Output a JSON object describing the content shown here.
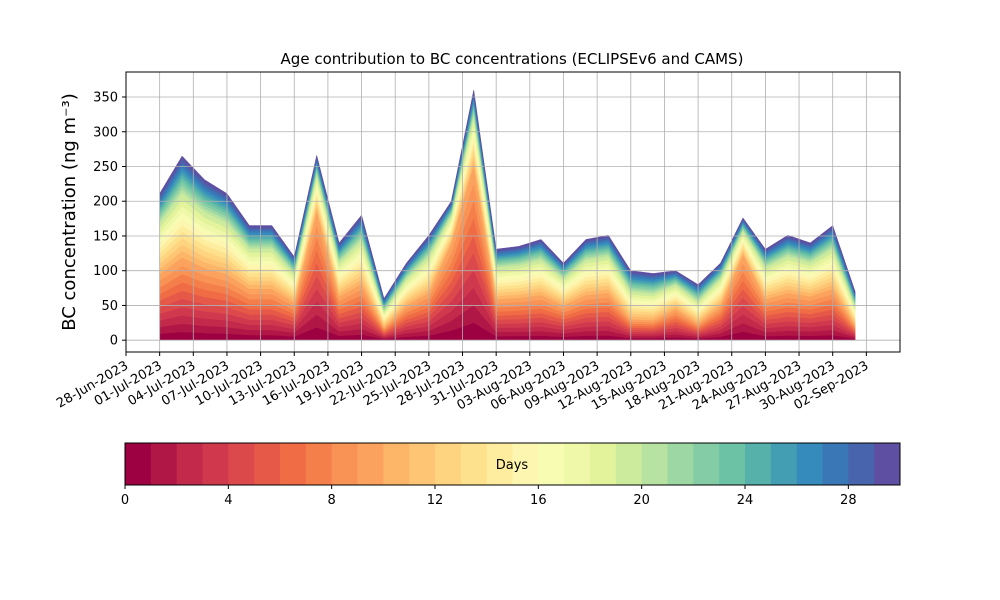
{
  "chart_data": {
    "type": "stacked_area",
    "title": "Age contribution to BC concentrations (ECLIPSEv6 and CAMS)",
    "ylabel": "BC concentration (ng m⁻³)",
    "x": [
      "2023-07-01",
      "2023-07-03",
      "2023-07-05",
      "2023-07-07",
      "2023-07-09",
      "2023-07-11",
      "2023-07-13",
      "2023-07-15",
      "2023-07-17",
      "2023-07-19",
      "2023-07-21",
      "2023-07-23",
      "2023-07-25",
      "2023-07-27",
      "2023-07-29",
      "2023-07-31",
      "2023-08-02",
      "2023-08-04",
      "2023-08-06",
      "2023-08-08",
      "2023-08-10",
      "2023-08-12",
      "2023-08-14",
      "2023-08-16",
      "2023-08-18",
      "2023-08-20",
      "2023-08-22",
      "2023-08-24",
      "2023-08-26",
      "2023-08-28",
      "2023-08-30",
      "2023-09-01"
    ],
    "series": [
      {
        "color": "#9e0142",
        "values": [
          9.5,
          11.9,
          10.4,
          9.5,
          7.4,
          7.4,
          5.4,
          18.6,
          6.3,
          8.1,
          1.8,
          5,
          6.8,
          14,
          25.2,
          5.9,
          6.1,
          6.5,
          5,
          6.5,
          6.8,
          3,
          2.9,
          4.5,
          2.4,
          5,
          12.3,
          5.9,
          6.8,
          6.3,
          7.4,
          2.1
        ]
      },
      {
        "color": "#b01646",
        "values": [
          9.5,
          11.9,
          10.4,
          9.5,
          7.4,
          7.4,
          5.4,
          18.6,
          6.3,
          8.1,
          1.8,
          5,
          6.8,
          14,
          25.2,
          5.9,
          6.1,
          6.5,
          5,
          6.5,
          6.8,
          3,
          2.9,
          4.5,
          2.4,
          5,
          12.3,
          5.9,
          6.8,
          6.3,
          7.4,
          2.1
        ]
      },
      {
        "color": "#c2294a",
        "values": [
          9.5,
          11.9,
          10.4,
          9.5,
          7.4,
          7.4,
          5.4,
          18.6,
          6.3,
          8.1,
          1.8,
          5,
          6.8,
          14,
          25.2,
          5.9,
          6.1,
          6.5,
          5,
          6.5,
          6.8,
          3,
          2.9,
          4.5,
          2.4,
          5,
          12.3,
          5.9,
          6.8,
          6.3,
          7.4,
          2.1
        ]
      },
      {
        "color": "#d0384e",
        "values": [
          9.5,
          11.9,
          10.4,
          9.5,
          7.4,
          7.4,
          5.4,
          18.6,
          6.3,
          8.1,
          1.8,
          5,
          6.8,
          14,
          25.2,
          5.9,
          6.1,
          6.5,
          5,
          6.5,
          6.8,
          3,
          2.9,
          4.5,
          2.4,
          5,
          12.3,
          5.9,
          6.8,
          6.3,
          7.4,
          2.1
        ]
      },
      {
        "color": "#dc494c",
        "values": [
          9.5,
          11.9,
          10.4,
          9.5,
          7.4,
          7.4,
          5.4,
          18.6,
          6.3,
          8.1,
          1.8,
          5,
          6.8,
          14,
          25.2,
          5.9,
          6.1,
          6.5,
          5,
          6.5,
          6.8,
          3,
          2.9,
          4.5,
          2.4,
          5,
          12.3,
          5.9,
          6.8,
          6.3,
          7.4,
          2.1
        ]
      },
      {
        "color": "#e65948",
        "values": [
          9.5,
          11.9,
          10.4,
          9.5,
          7.4,
          7.4,
          5.4,
          18.6,
          6.3,
          8.1,
          1.8,
          5,
          6.8,
          14,
          25.2,
          5.9,
          6.1,
          6.5,
          5,
          6.5,
          6.8,
          3,
          2.9,
          4.5,
          2.4,
          5,
          12.3,
          5.9,
          6.8,
          6.3,
          7.4,
          2.1
        ]
      },
      {
        "color": "#f06c45",
        "values": [
          9.5,
          11.9,
          10.4,
          9.5,
          7.4,
          7.4,
          5.4,
          18.6,
          6.3,
          8.1,
          1.8,
          5,
          6.8,
          14,
          25.2,
          5.9,
          6.1,
          6.5,
          5,
          6.5,
          6.8,
          3,
          2.9,
          4.5,
          2.4,
          5,
          12.3,
          5.9,
          6.8,
          6.3,
          7.4,
          2.1
        ]
      },
      {
        "color": "#f57f4b",
        "values": [
          9.5,
          11.9,
          10.4,
          9.5,
          7.4,
          7.4,
          5.4,
          18.6,
          6.3,
          8.1,
          1.8,
          5,
          6.8,
          14,
          25.2,
          5.9,
          6.1,
          6.5,
          5,
          6.5,
          6.8,
          3,
          2.9,
          4.5,
          2.4,
          5,
          12.3,
          5.9,
          6.8,
          6.3,
          7.4,
          2.1
        ]
      },
      {
        "color": "#f99355",
        "values": [
          9.5,
          11.9,
          10.4,
          9.5,
          7.4,
          7.4,
          5.4,
          18.6,
          6.3,
          8.1,
          1.8,
          5,
          6.8,
          14,
          25.2,
          5.9,
          6.1,
          6.5,
          5,
          6.5,
          6.8,
          3,
          2.9,
          4.5,
          2.4,
          5,
          12.3,
          5.9,
          6.8,
          6.3,
          7.4,
          2.1
        ]
      },
      {
        "color": "#fba35e",
        "values": [
          9.5,
          11.9,
          10.4,
          9.5,
          7.4,
          7.4,
          5.4,
          18.6,
          6.3,
          8.1,
          1.8,
          5,
          6.8,
          14,
          25.2,
          5.9,
          6.1,
          6.5,
          5,
          6.5,
          6.8,
          3,
          2.9,
          4.5,
          2.4,
          5,
          12.3,
          5.9,
          6.8,
          6.3,
          7.4,
          2.1
        ]
      },
      {
        "color": "#fdb567",
        "values": [
          7.4,
          9.3,
          8.1,
          7.4,
          5.8,
          5.8,
          4.2,
          5.3,
          4.9,
          6.3,
          2.4,
          3.9,
          5.3,
          4,
          7.2,
          4.6,
          4.7,
          5.1,
          3.9,
          5.1,
          5.3,
          4,
          3.8,
          3.5,
          3.2,
          3.9,
          3.5,
          4.6,
          5.3,
          4.9,
          5.8,
          2.8
        ]
      },
      {
        "color": "#fdc574",
        "values": [
          7.4,
          9.3,
          8.1,
          7.4,
          5.8,
          5.8,
          4.2,
          5.3,
          4.9,
          6.3,
          2.4,
          3.9,
          5.3,
          4,
          7.2,
          4.6,
          4.7,
          5.1,
          3.9,
          5.1,
          5.3,
          4,
          3.8,
          3.5,
          3.2,
          3.9,
          3.5,
          4.6,
          5.3,
          4.9,
          5.8,
          2.8
        ]
      },
      {
        "color": "#fed481",
        "values": [
          7.4,
          9.3,
          8.1,
          7.4,
          5.8,
          5.8,
          4.2,
          5.3,
          4.9,
          6.3,
          2.4,
          3.9,
          5.3,
          4,
          7.2,
          4.6,
          4.7,
          5.1,
          3.9,
          5.1,
          5.3,
          4,
          3.8,
          3.5,
          3.2,
          3.9,
          3.5,
          4.6,
          5.3,
          4.9,
          5.8,
          2.8
        ]
      },
      {
        "color": "#fee18d",
        "values": [
          7.4,
          9.3,
          8.1,
          7.4,
          5.8,
          5.8,
          4.2,
          5.3,
          4.9,
          6.3,
          2.4,
          3.9,
          5.3,
          4,
          7.2,
          4.6,
          4.7,
          5.1,
          3.9,
          5.1,
          5.3,
          4,
          3.8,
          3.5,
          3.2,
          3.9,
          3.5,
          4.6,
          5.3,
          4.9,
          5.8,
          2.8
        ]
      },
      {
        "color": "#feed9f",
        "values": [
          7.4,
          9.3,
          8.1,
          7.4,
          5.8,
          5.8,
          4.2,
          5.3,
          4.9,
          6.3,
          2.4,
          3.9,
          5.3,
          4,
          7.2,
          4.6,
          4.7,
          5.1,
          3.9,
          5.1,
          5.3,
          4,
          3.8,
          3.5,
          3.2,
          3.9,
          3.5,
          4.6,
          5.3,
          4.9,
          5.8,
          2.8
        ]
      },
      {
        "color": "#fdf6b0",
        "values": [
          7.4,
          9.3,
          8.1,
          7.4,
          5.8,
          5.8,
          4.2,
          5.3,
          4.9,
          6.3,
          2.4,
          3.9,
          5.3,
          4,
          7.2,
          4.6,
          4.7,
          5.1,
          3.9,
          5.1,
          5.3,
          4,
          3.8,
          3.5,
          3.2,
          3.9,
          3.5,
          4.6,
          5.3,
          4.9,
          5.8,
          2.8
        ]
      },
      {
        "color": "#f8fbb2",
        "values": [
          7.4,
          9.3,
          8.1,
          7.4,
          5.8,
          5.8,
          4.2,
          5.3,
          4.9,
          6.3,
          2.4,
          3.9,
          5.3,
          4,
          7.2,
          4.6,
          4.7,
          5.1,
          3.9,
          5.1,
          5.3,
          4,
          3.8,
          3.5,
          3.2,
          3.9,
          3.5,
          4.6,
          5.3,
          4.9,
          5.8,
          2.8
        ]
      },
      {
        "color": "#eef8a8",
        "values": [
          7.4,
          9.3,
          8.1,
          7.4,
          5.8,
          5.8,
          4.2,
          5.3,
          4.9,
          6.3,
          2.4,
          3.9,
          5.3,
          4,
          7.2,
          4.6,
          4.7,
          5.1,
          3.9,
          5.1,
          5.3,
          4,
          3.8,
          3.5,
          3.2,
          3.9,
          3.5,
          4.6,
          5.3,
          4.9,
          5.8,
          2.8
        ]
      },
      {
        "color": "#e2f39b",
        "values": [
          7.4,
          9.3,
          8.1,
          7.4,
          5.8,
          5.8,
          4.2,
          5.3,
          4.9,
          6.3,
          2.4,
          3.9,
          5.3,
          4,
          7.2,
          4.6,
          4.7,
          5.1,
          3.9,
          5.1,
          5.3,
          4,
          3.8,
          3.5,
          3.2,
          3.9,
          3.5,
          4.6,
          5.3,
          4.9,
          5.8,
          2.8
        ]
      },
      {
        "color": "#cdeb9d",
        "values": [
          7.4,
          9.3,
          8.1,
          7.4,
          5.8,
          5.8,
          4.2,
          5.3,
          4.9,
          6.3,
          2.4,
          3.9,
          5.3,
          4,
          7.2,
          4.6,
          4.7,
          5.1,
          3.9,
          5.1,
          5.3,
          4,
          3.8,
          3.5,
          3.2,
          3.9,
          3.5,
          4.6,
          5.3,
          4.9,
          5.8,
          2.8
        ]
      },
      {
        "color": "#b7e2a1",
        "values": [
          4.2,
          5.3,
          4.6,
          4.2,
          3.3,
          3.3,
          2.4,
          2.7,
          2.8,
          3.6,
          1.8,
          2.2,
          3,
          2,
          3.6,
          2.6,
          2.7,
          2.9,
          2.2,
          2.9,
          3,
          3,
          2.9,
          2,
          2.4,
          2.2,
          1.8,
          2.6,
          3,
          2.8,
          3.3,
          2.1
        ]
      },
      {
        "color": "#9dd7a4",
        "values": [
          4.2,
          5.3,
          4.6,
          4.2,
          3.3,
          3.3,
          2.4,
          2.7,
          2.8,
          3.6,
          1.8,
          2.2,
          3,
          2,
          3.6,
          2.6,
          2.7,
          2.9,
          2.2,
          2.9,
          3,
          3,
          2.9,
          2,
          2.4,
          2.2,
          1.8,
          2.6,
          3,
          2.8,
          3.3,
          2.1
        ]
      },
      {
        "color": "#83cca5",
        "values": [
          4.2,
          5.3,
          4.6,
          4.2,
          3.3,
          3.3,
          2.4,
          2.7,
          2.8,
          3.6,
          1.8,
          2.2,
          3,
          2,
          3.6,
          2.6,
          2.7,
          2.9,
          2.2,
          2.9,
          3,
          3,
          2.9,
          2,
          2.4,
          2.2,
          1.8,
          2.6,
          3,
          2.8,
          3.3,
          2.1
        ]
      },
      {
        "color": "#6bc2a5",
        "values": [
          4.2,
          5.3,
          4.6,
          4.2,
          3.3,
          3.3,
          2.4,
          2.7,
          2.8,
          3.6,
          1.8,
          2.2,
          3,
          2,
          3.6,
          2.6,
          2.7,
          2.9,
          2.2,
          2.9,
          3,
          3,
          2.9,
          2,
          2.4,
          2.2,
          1.8,
          2.6,
          3,
          2.8,
          3.3,
          2.1
        ]
      },
      {
        "color": "#56b1aa",
        "values": [
          4.2,
          5.3,
          4.6,
          4.2,
          3.3,
          3.3,
          2.4,
          2.7,
          2.8,
          3.6,
          1.8,
          2.2,
          3,
          2,
          3.6,
          2.6,
          2.7,
          2.9,
          2.2,
          2.9,
          3,
          3,
          2.9,
          2,
          2.4,
          2.2,
          1.8,
          2.6,
          3,
          2.8,
          3.3,
          2.1
        ]
      },
      {
        "color": "#449eb3",
        "values": [
          4.2,
          5.3,
          4.6,
          4.2,
          3.3,
          3.3,
          2.4,
          2.7,
          2.8,
          3.6,
          1.8,
          2.2,
          3,
          2,
          3.6,
          2.6,
          2.7,
          2.9,
          2.2,
          2.9,
          3,
          3,
          2.9,
          2,
          2.4,
          2.2,
          1.8,
          2.6,
          3,
          2.8,
          3.3,
          2.1
        ]
      },
      {
        "color": "#358bbc",
        "values": [
          4.2,
          5.3,
          4.6,
          4.2,
          3.3,
          3.3,
          2.4,
          2.7,
          2.8,
          3.6,
          1.8,
          2.2,
          3,
          2,
          3.6,
          2.6,
          2.7,
          2.9,
          2.2,
          2.9,
          3,
          3,
          2.9,
          2,
          2.4,
          2.2,
          1.8,
          2.6,
          3,
          2.8,
          3.3,
          2.1
        ]
      },
      {
        "color": "#3a77b6",
        "values": [
          4.2,
          5.3,
          4.6,
          4.2,
          3.3,
          3.3,
          2.4,
          2.7,
          2.8,
          3.6,
          1.8,
          2.2,
          3,
          2,
          3.6,
          2.6,
          2.7,
          2.9,
          2.2,
          2.9,
          3,
          3,
          2.9,
          2,
          2.4,
          2.2,
          1.8,
          2.6,
          3,
          2.8,
          3.3,
          2.1
        ]
      },
      {
        "color": "#4864ac",
        "values": [
          4.2,
          5.3,
          4.6,
          4.2,
          3.3,
          3.3,
          2.4,
          2.7,
          2.8,
          3.6,
          1.8,
          2.2,
          3,
          2,
          3.6,
          2.6,
          2.7,
          2.9,
          2.2,
          2.9,
          3,
          3,
          2.9,
          2,
          2.4,
          2.2,
          1.8,
          2.6,
          3,
          2.8,
          3.3,
          2.1
        ]
      },
      {
        "color": "#5e4fa2",
        "values": [
          4.2,
          5.3,
          4.6,
          4.2,
          3.3,
          3.3,
          2.4,
          2.7,
          2.8,
          3.6,
          1.8,
          2.2,
          3,
          2,
          3.6,
          2.6,
          2.7,
          2.9,
          2.2,
          2.9,
          3,
          3,
          2.9,
          2,
          2.4,
          2.2,
          1.8,
          2.6,
          3,
          2.8,
          3.3,
          2.1
        ]
      }
    ],
    "xlim": [
      "2023-06-28",
      "2023-09-05"
    ],
    "xticks": [
      {
        "value": "2023-06-28",
        "label": "28-Jun-2023"
      },
      {
        "value": "2023-07-01",
        "label": "01-Jul-2023"
      },
      {
        "value": "2023-07-04",
        "label": "04-Jul-2023"
      },
      {
        "value": "2023-07-07",
        "label": "07-Jul-2023"
      },
      {
        "value": "2023-07-10",
        "label": "10-Jul-2023"
      },
      {
        "value": "2023-07-13",
        "label": "13-Jul-2023"
      },
      {
        "value": "2023-07-16",
        "label": "16-Jul-2023"
      },
      {
        "value": "2023-07-19",
        "label": "19-Jul-2023"
      },
      {
        "value": "2023-07-22",
        "label": "22-Jul-2023"
      },
      {
        "value": "2023-07-25",
        "label": "25-Jul-2023"
      },
      {
        "value": "2023-07-28",
        "label": "28-Jul-2023"
      },
      {
        "value": "2023-07-31",
        "label": "31-Jul-2023"
      },
      {
        "value": "2023-08-03",
        "label": "03-Aug-2023"
      },
      {
        "value": "2023-08-06",
        "label": "06-Aug-2023"
      },
      {
        "value": "2023-08-09",
        "label": "09-Aug-2023"
      },
      {
        "value": "2023-08-12",
        "label": "12-Aug-2023"
      },
      {
        "value": "2023-08-15",
        "label": "15-Aug-2023"
      },
      {
        "value": "2023-08-18",
        "label": "18-Aug-2023"
      },
      {
        "value": "2023-08-21",
        "label": "21-Aug-2023"
      },
      {
        "value": "2023-08-24",
        "label": "24-Aug-2023"
      },
      {
        "value": "2023-08-27",
        "label": "27-Aug-2023"
      },
      {
        "value": "2023-08-30",
        "label": "30-Aug-2023"
      },
      {
        "value": "2023-09-02",
        "label": "02-Sep-2023"
      }
    ],
    "ylim": [
      -17,
      386
    ],
    "yticks": [
      0,
      50,
      100,
      150,
      200,
      250,
      300,
      350
    ],
    "grid": true,
    "colorbar": {
      "label": "Days",
      "lim": [
        0,
        30
      ],
      "ticks": [
        0,
        4,
        8,
        12,
        16,
        20,
        24,
        28
      ]
    }
  }
}
